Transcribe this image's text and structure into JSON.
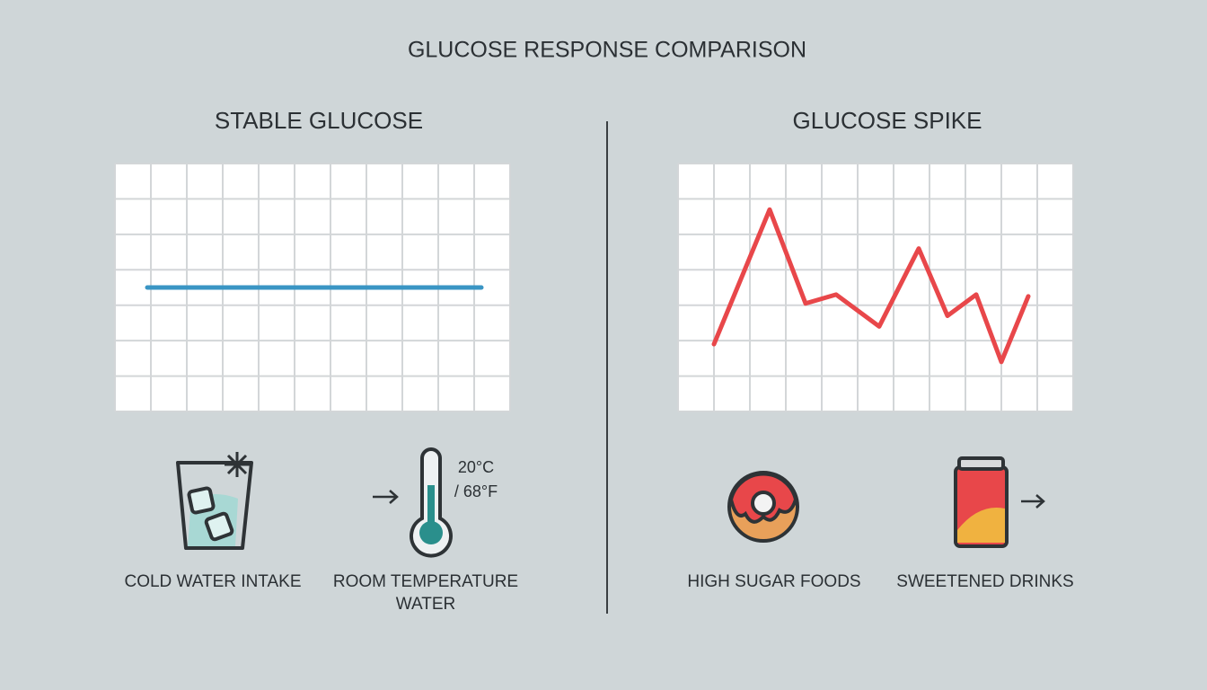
{
  "title": "GLUCOSE RESPONSE COMPARISON",
  "chart_data": [
    {
      "type": "line",
      "title": "STABLE GLUCOSE",
      "x": [
        0.9,
        10.2
      ],
      "values": [
        3.5,
        3.5
      ],
      "color": "#3a95c4",
      "xlim": [
        0,
        11
      ],
      "ylim": [
        0,
        7
      ],
      "grid": true
    },
    {
      "type": "line",
      "title": "GLUCOSE SPIKE",
      "x": [
        1.0,
        2.55,
        3.55,
        4.4,
        5.6,
        6.7,
        7.5,
        8.3,
        9.0,
        9.75
      ],
      "values": [
        1.9,
        5.7,
        3.05,
        3.3,
        2.4,
        4.6,
        2.7,
        3.3,
        1.4,
        3.25
      ],
      "color": "#e8474a",
      "xlim": [
        0,
        11
      ],
      "ylim": [
        0,
        7
      ],
      "grid": true
    }
  ],
  "captions": {
    "cold_water": "COLD WATER INTAKE",
    "room_water": [
      "ROOM TEMPERATURE",
      "WATER"
    ],
    "temperature": [
      "20°C",
      "/ 68°F"
    ],
    "sugar_foods": "HIGH SUGAR FOODS",
    "sweet_drinks": "SWEETENED DRINKS"
  }
}
